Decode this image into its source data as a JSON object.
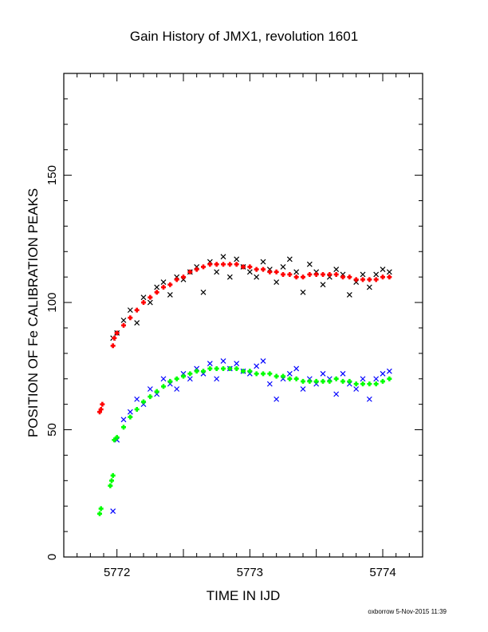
{
  "chart_data": {
    "type": "scatter",
    "title": "Gain History of JMX1, revolution 1601",
    "xlabel": "TIME IN IJD",
    "ylabel": "POSITION OF Fe CALIBRATION PEAKS",
    "xlim": [
      5771.6,
      5774.3
    ],
    "ylim": [
      0,
      190
    ],
    "x_ticks": [
      "5772",
      "5773",
      "5774"
    ],
    "y_ticks": [
      "0",
      "50",
      "100",
      "150"
    ],
    "grid": false,
    "series": [
      {
        "marker": "x",
        "color": "#000000",
        "x": [
          5771.97,
          5772.0,
          5772.05,
          5772.1,
          5772.15,
          5772.2,
          5772.25,
          5772.3,
          5772.35,
          5772.4,
          5772.45,
          5772.5,
          5772.55,
          5772.6,
          5772.65,
          5772.7,
          5772.75,
          5772.8,
          5772.85,
          5772.9,
          5772.95,
          5773.0,
          5773.05,
          5773.1,
          5773.15,
          5773.2,
          5773.25,
          5773.3,
          5773.35,
          5773.4,
          5773.45,
          5773.5,
          5773.55,
          5773.6,
          5773.65,
          5773.7,
          5773.75,
          5773.8,
          5773.85,
          5773.9,
          5773.95,
          5774.0,
          5774.05
        ],
        "y": [
          86,
          88,
          93,
          97,
          92,
          102,
          100,
          106,
          108,
          103,
          110,
          109,
          112,
          114,
          104,
          116,
          112,
          118,
          110,
          117,
          114,
          112,
          110,
          116,
          113,
          108,
          114,
          117,
          112,
          104,
          115,
          112,
          107,
          110,
          113,
          111,
          103,
          108,
          111,
          106,
          111,
          113,
          112
        ]
      },
      {
        "marker": "+",
        "color": "#ff0000",
        "x": [
          5771.87,
          5771.88,
          5771.89,
          5771.97,
          5771.98,
          5772.0,
          5772.05,
          5772.1,
          5772.15,
          5772.2,
          5772.25,
          5772.3,
          5772.35,
          5772.4,
          5772.45,
          5772.5,
          5772.55,
          5772.6,
          5772.65,
          5772.7,
          5772.75,
          5772.8,
          5772.85,
          5772.9,
          5772.95,
          5773.0,
          5773.05,
          5773.1,
          5773.15,
          5773.2,
          5773.25,
          5773.3,
          5773.35,
          5773.4,
          5773.45,
          5773.5,
          5773.55,
          5773.6,
          5773.65,
          5773.7,
          5773.75,
          5773.8,
          5773.85,
          5773.9,
          5773.95,
          5774.0,
          5774.05
        ],
        "y": [
          57,
          58,
          60,
          83,
          86,
          88,
          91,
          94,
          97,
          100,
          102,
          104,
          106,
          107,
          109,
          110,
          112,
          113,
          114,
          115,
          115,
          115,
          115,
          115,
          114,
          114,
          113,
          113,
          112,
          112,
          111,
          111,
          110,
          110,
          111,
          111,
          111,
          111,
          111,
          110,
          110,
          109,
          109,
          109,
          109,
          110,
          110
        ]
      },
      {
        "marker": "x",
        "color": "#0000ff",
        "x": [
          5771.97,
          5772.0,
          5772.05,
          5772.1,
          5772.15,
          5772.2,
          5772.25,
          5772.3,
          5772.35,
          5772.4,
          5772.45,
          5772.5,
          5772.55,
          5772.6,
          5772.65,
          5772.7,
          5772.75,
          5772.8,
          5772.85,
          5772.9,
          5772.95,
          5773.0,
          5773.05,
          5773.1,
          5773.15,
          5773.2,
          5773.25,
          5773.3,
          5773.35,
          5773.4,
          5773.45,
          5773.5,
          5773.55,
          5773.6,
          5773.65,
          5773.7,
          5773.75,
          5773.8,
          5773.85,
          5773.9,
          5773.95,
          5774.0,
          5774.05
        ],
        "y": [
          18,
          46,
          54,
          57,
          62,
          60,
          66,
          64,
          70,
          68,
          66,
          72,
          70,
          74,
          72,
          76,
          70,
          77,
          74,
          76,
          73,
          72,
          75,
          77,
          68,
          62,
          70,
          72,
          74,
          66,
          70,
          68,
          72,
          70,
          64,
          72,
          68,
          66,
          70,
          62,
          70,
          72,
          73
        ]
      },
      {
        "marker": "+",
        "color": "#00ff00",
        "x": [
          5771.87,
          5771.88,
          5771.95,
          5771.96,
          5771.97,
          5771.98,
          5772.0,
          5772.05,
          5772.1,
          5772.15,
          5772.2,
          5772.25,
          5772.3,
          5772.35,
          5772.4,
          5772.45,
          5772.5,
          5772.55,
          5772.6,
          5772.65,
          5772.7,
          5772.75,
          5772.8,
          5772.85,
          5772.9,
          5772.95,
          5773.0,
          5773.05,
          5773.1,
          5773.15,
          5773.2,
          5773.25,
          5773.3,
          5773.35,
          5773.4,
          5773.45,
          5773.5,
          5773.55,
          5773.6,
          5773.65,
          5773.7,
          5773.75,
          5773.8,
          5773.85,
          5773.9,
          5773.95,
          5774.0,
          5774.05
        ],
        "y": [
          17,
          19,
          28,
          30,
          32,
          46,
          47,
          51,
          55,
          58,
          61,
          63,
          65,
          67,
          69,
          70,
          71,
          72,
          73,
          73,
          74,
          74,
          74,
          74,
          74,
          73,
          73,
          72,
          72,
          72,
          71,
          71,
          70,
          70,
          69,
          69,
          69,
          69,
          69,
          70,
          69,
          69,
          68,
          68,
          68,
          68,
          69,
          70
        ]
      }
    ]
  },
  "footer": "oxborrow  5-Nov-2015 11:39"
}
